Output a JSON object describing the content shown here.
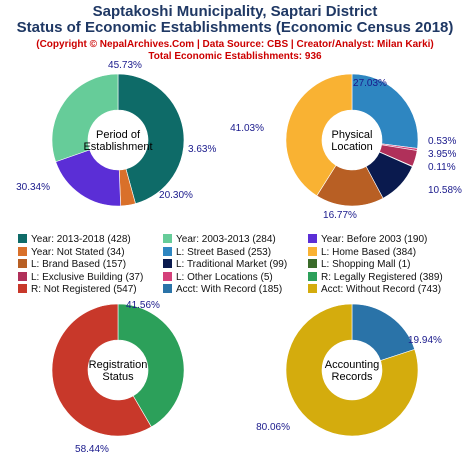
{
  "header": {
    "title_line1": "Saptakoshi Municipality, Saptari District",
    "title_line2": "Status of Economic Establishments (Economic Census 2018)",
    "credit": "(Copyright © NepalArchives.Com | Data Source: CBS | Creator/Analyst: Milan Karki)",
    "total": "Total Economic Establishments: 936"
  },
  "legend": [
    {
      "label": "Year: 2013-2018 (428)",
      "color": "#0e6b68"
    },
    {
      "label": "Year: 2003-2013 (284)",
      "color": "#66cc99"
    },
    {
      "label": "Year: Before 2003 (190)",
      "color": "#5b2ed6"
    },
    {
      "label": "Year: Not Stated (34)",
      "color": "#d9702a"
    },
    {
      "label": "L: Street Based (253)",
      "color": "#2e86c1"
    },
    {
      "label": "L: Home Based (384)",
      "color": "#f9b233"
    },
    {
      "label": "L: Brand Based (157)",
      "color": "#b85f24"
    },
    {
      "label": "L: Traditional Market (99)",
      "color": "#0a1a4e"
    },
    {
      "label": "L: Shopping Mall (1)",
      "color": "#3a6b2a"
    },
    {
      "label": "L: Exclusive Building (37)",
      "color": "#b0305a"
    },
    {
      "label": "L: Other Locations (5)",
      "color": "#d4407a"
    },
    {
      "label": "R: Legally Registered (389)",
      "color": "#2ca05a"
    },
    {
      "label": "R: Not Registered (547)",
      "color": "#c8382a"
    },
    {
      "label": "Acct: With Record (185)",
      "color": "#2a73a8"
    },
    {
      "label": "Acct: Without Record (743)",
      "color": "#d4ac0d"
    }
  ],
  "chart_data": [
    {
      "type": "pie",
      "center_label": [
        "Period of",
        "Establishment"
      ],
      "slices": [
        {
          "value": 45.73,
          "label": "45.73%",
          "color": "#0e6b68"
        },
        {
          "value": 3.63,
          "label": "3.63%",
          "color": "#d9702a"
        },
        {
          "value": 20.3,
          "label": "20.30%",
          "color": "#5b2ed6"
        },
        {
          "value": 30.34,
          "label": "30.34%",
          "color": "#66cc99"
        }
      ]
    },
    {
      "type": "pie",
      "center_label": [
        "Physical",
        "Location"
      ],
      "slices": [
        {
          "value": 27.03,
          "label": "27.03%",
          "color": "#2e86c1"
        },
        {
          "value": 0.53,
          "label": "0.53%",
          "color": "#d4407a"
        },
        {
          "value": 3.95,
          "label": "3.95%",
          "color": "#b0305a"
        },
        {
          "value": 0.11,
          "label": "0.11%",
          "color": "#3a6b2a"
        },
        {
          "value": 10.58,
          "label": "10.58%",
          "color": "#0a1a4e"
        },
        {
          "value": 16.77,
          "label": "16.77%",
          "color": "#b85f24"
        },
        {
          "value": 41.03,
          "label": "41.03%",
          "color": "#f9b233"
        }
      ]
    },
    {
      "type": "pie",
      "center_label": [
        "Registration",
        "Status"
      ],
      "slices": [
        {
          "value": 41.56,
          "label": "41.56%",
          "color": "#2ca05a"
        },
        {
          "value": 58.44,
          "label": "58.44%",
          "color": "#c8382a"
        }
      ]
    },
    {
      "type": "pie",
      "center_label": [
        "Accounting",
        "Records"
      ],
      "slices": [
        {
          "value": 19.94,
          "label": "19.94%",
          "color": "#2a73a8"
        },
        {
          "value": 80.06,
          "label": "80.06%",
          "color": "#d4ac0d"
        }
      ]
    }
  ]
}
